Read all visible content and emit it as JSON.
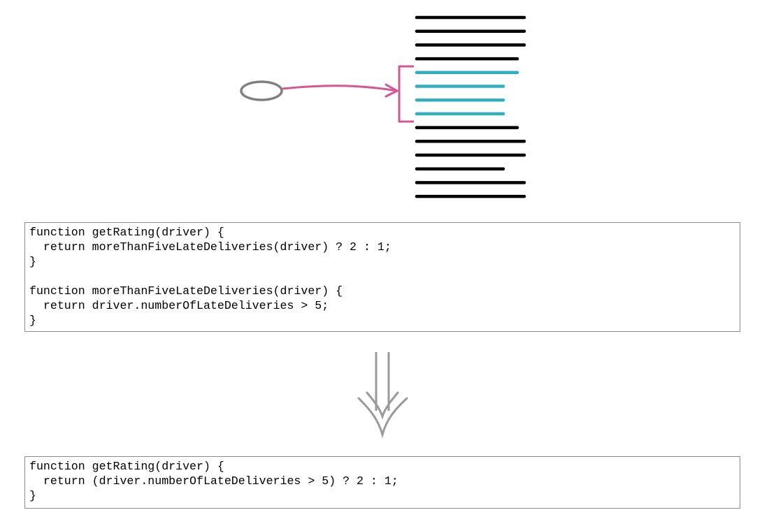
{
  "colors": {
    "code_line": "#000000",
    "extracted_line": "#2eb0c1",
    "bracket": "#d65593",
    "call_site": "#808080",
    "arrow": "#9a9a9a",
    "box_border": "#8c8c8c"
  },
  "icons": {
    "call_site": "rounded-oval-icon",
    "transform": "double-down-arrow-icon"
  },
  "diagram": {
    "code_lines": [
      {
        "highlighted": false
      },
      {
        "highlighted": false
      },
      {
        "highlighted": false
      },
      {
        "highlighted": false
      },
      {
        "highlighted": true
      },
      {
        "highlighted": true
      },
      {
        "highlighted": true
      },
      {
        "highlighted": true
      },
      {
        "highlighted": false
      },
      {
        "highlighted": false
      },
      {
        "highlighted": false
      },
      {
        "highlighted": false
      },
      {
        "highlighted": false
      },
      {
        "highlighted": false
      }
    ]
  },
  "before": {
    "code": "function getRating(driver) {\n  return moreThanFiveLateDeliveries(driver) ? 2 : 1;\n}\n\nfunction moreThanFiveLateDeliveries(driver) {\n  return driver.numberOfLateDeliveries > 5;\n}"
  },
  "after": {
    "code": "function getRating(driver) {\n  return (driver.numberOfLateDeliveries > 5) ? 2 : 1;\n}"
  }
}
